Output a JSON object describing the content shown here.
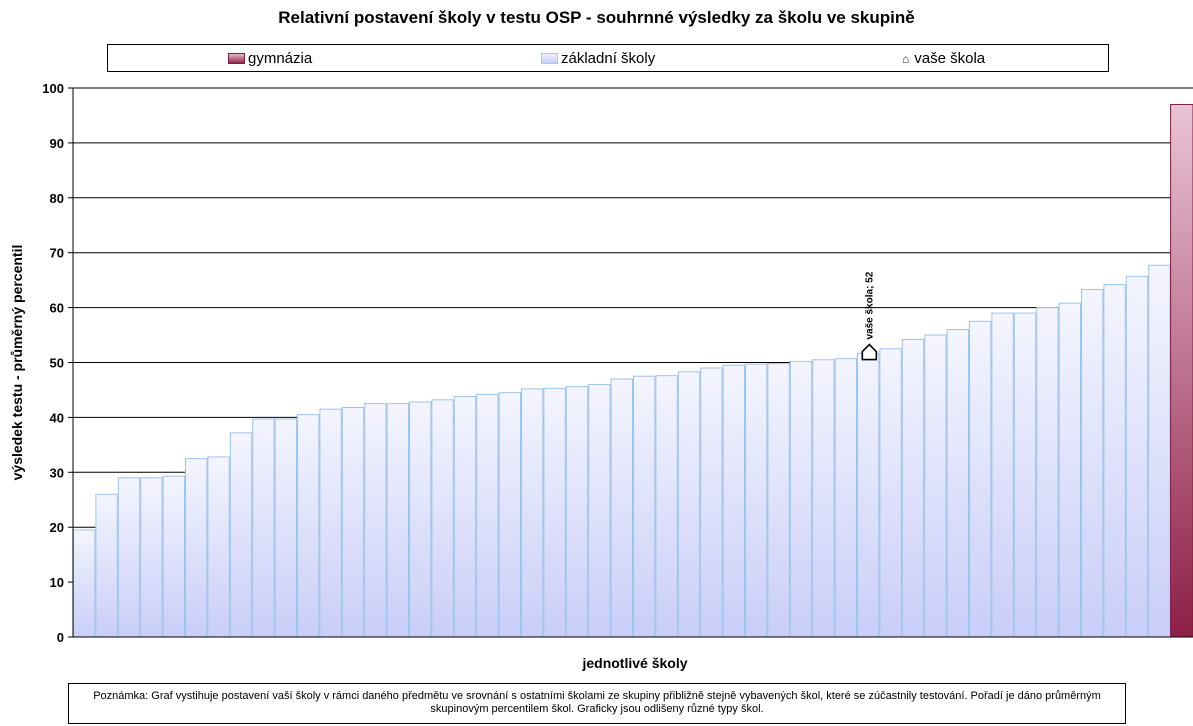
{
  "chart_data": {
    "type": "bar",
    "title": "Relativní postavení školy v testu OSP - souhrnné výsledky za školu ve skupině",
    "xlabel": "jednotlivé školy",
    "ylabel": "výsledek testu - průměrný percentil",
    "ylim": [
      0,
      100
    ],
    "yticks": [
      0,
      10,
      20,
      30,
      40,
      50,
      60,
      70,
      80,
      90,
      100
    ],
    "grid": true,
    "legend_position": "top",
    "legend": [
      {
        "name": "gymnázia",
        "color": "#96284f"
      },
      {
        "name": "základní školy",
        "color": "#dde1fb"
      },
      {
        "name": "vaše škola",
        "marker": "house"
      }
    ],
    "series": [
      {
        "name": "základní školy",
        "values": [
          19.5,
          26,
          29,
          29,
          29.3,
          32.5,
          32.8,
          37.2,
          39.7,
          39.7,
          40.5,
          41.5,
          41.8,
          42.5,
          42.5,
          42.8,
          43.2,
          43.8,
          44.2,
          44.5,
          45.2,
          45.3,
          45.6,
          46,
          47,
          47.5,
          47.6,
          48.3,
          49,
          49.5,
          49.7,
          49.8,
          50.2,
          50.5,
          50.7,
          51.7,
          52.5,
          54.2,
          55,
          56,
          57.5,
          59,
          59,
          60,
          60.8,
          63.3,
          64.2,
          65.7,
          67.7
        ]
      },
      {
        "name": "gymnázia",
        "values": [
          97
        ]
      }
    ],
    "highlight": {
      "label": "vaše škola; 52",
      "index": 35,
      "value": 52
    }
  },
  "note": "Poznámka: Graf vystihuje postavení vaší školy v rámci daného předmětu ve srovnání s ostatními školami ze skupiny přibližně stejně vybavených škol, které se zúčastnily testování. Pořadí je dáno průměrným skupinovým percentilem škol. Graficky jsou odlišeny různé typy škol."
}
